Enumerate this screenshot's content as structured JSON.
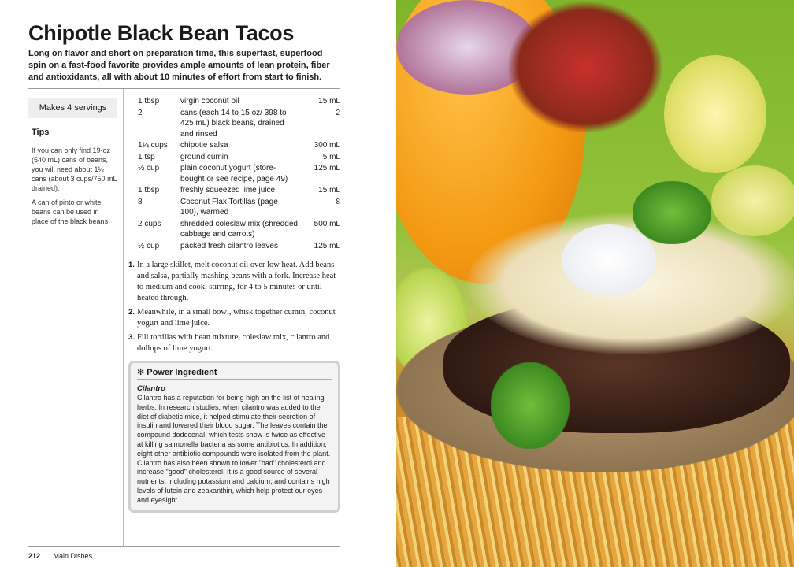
{
  "recipe": {
    "title": "Chipotle Black Bean Tacos",
    "intro": "Long on flavor and short on preparation time, this superfast, superfood spin on a fast-food favorite provides ample amounts of lean protein, fiber and antioxidants, all with about 10 minutes of effort from start to finish.",
    "servings": "Makes 4 servings",
    "tips_heading": "Tips",
    "tips": [
      "If you can only find 19-oz (540 mL) cans of beans, you will need about 1½ cans (about 3 cups/750 mL drained).",
      "A can of pinto or white beans can be used in place of the black beans."
    ],
    "ingredients": [
      {
        "qty": "1 tbsp",
        "name": "virgin coconut oil",
        "metric": "15 mL"
      },
      {
        "qty": "2",
        "name": "cans (each 14 to 15 oz/ 398 to 425 mL) black beans, drained and rinsed",
        "metric": "2"
      },
      {
        "qty": "1¼ cups",
        "name": "chipotle salsa",
        "metric": "300 mL"
      },
      {
        "qty": "1 tsp",
        "name": "ground cumin",
        "metric": "5 mL"
      },
      {
        "qty": "½ cup",
        "name": "plain coconut yogurt (store-bought or see recipe, page 49)",
        "metric": "125 mL"
      },
      {
        "qty": "1 tbsp",
        "name": "freshly squeezed lime juice",
        "metric": "15 mL"
      },
      {
        "qty": "8",
        "name": "Coconut Flax Tortillas (page 100), warmed",
        "metric": "8"
      },
      {
        "qty": "2 cups",
        "name": "shredded coleslaw mix (shredded cabbage and carrots)",
        "metric": "500 mL"
      },
      {
        "qty": "½ cup",
        "name": "packed fresh cilantro leaves",
        "metric": "125 mL"
      }
    ],
    "steps": [
      {
        "num": "1.",
        "text": "In a large skillet, melt coconut oil over low heat. Add beans and salsa, partially mashing beans with a fork. Increase heat to medium and cook, stirring, for 4 to 5 minutes or until heated through."
      },
      {
        "num": "2.",
        "text": "Meanwhile, in a small bowl, whisk together cumin, coconut yogurt and lime juice."
      },
      {
        "num": "3.",
        "text": "Fill tortillas with bean mixture, coleslaw mix, cilantro and dollops of lime yogurt."
      }
    ],
    "power": {
      "heading": "✻ Power Ingredient",
      "subheading": "Cilantro",
      "body": "Cilantro has a reputation for being high on the list of healing herbs. In research studies, when cilantro was added to the diet of diabetic mice, it helped stimulate their secretion of insulin and lowered their blood sugar. The leaves contain the compound dodecenal, which tests show is twice as effective at killing salmonella bacteria as some antibiotics. In addition, eight other antibiotic compounds were isolated from the plant. Cilantro has also been shown to lower \"bad\" cholesterol and increase \"good\" cholesterol. It is a good source of several nutrients, including potassium and calcium, and contains high levels of lutein and zeaxanthin, which help protect our eyes and eyesight."
    }
  },
  "footer": {
    "page": "212",
    "section": "Main Dishes"
  }
}
